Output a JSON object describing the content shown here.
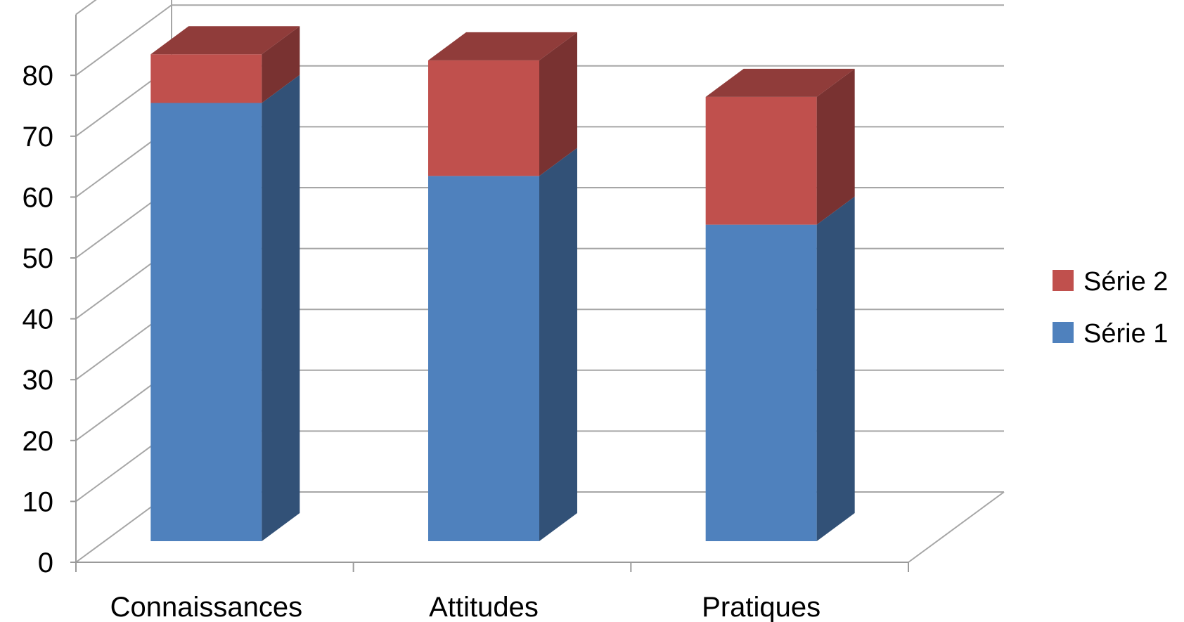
{
  "chart_data": {
    "type": "bar",
    "stacked": true,
    "style": "3d-column",
    "categories": [
      "Connaissances",
      "Attitudes",
      "Pratiques"
    ],
    "series": [
      {
        "name": "Série 1",
        "values": [
          72,
          60,
          52
        ],
        "color": "#4f81bd"
      },
      {
        "name": "Série 2",
        "values": [
          8,
          19,
          21
        ],
        "color": "#c0504d"
      }
    ],
    "yticks": [
      0,
      10,
      20,
      30,
      40,
      50,
      60,
      70,
      80
    ],
    "ylim": [
      0,
      90
    ],
    "grid": true,
    "legend": "right",
    "title": "",
    "xlabel": "",
    "ylabel": ""
  }
}
